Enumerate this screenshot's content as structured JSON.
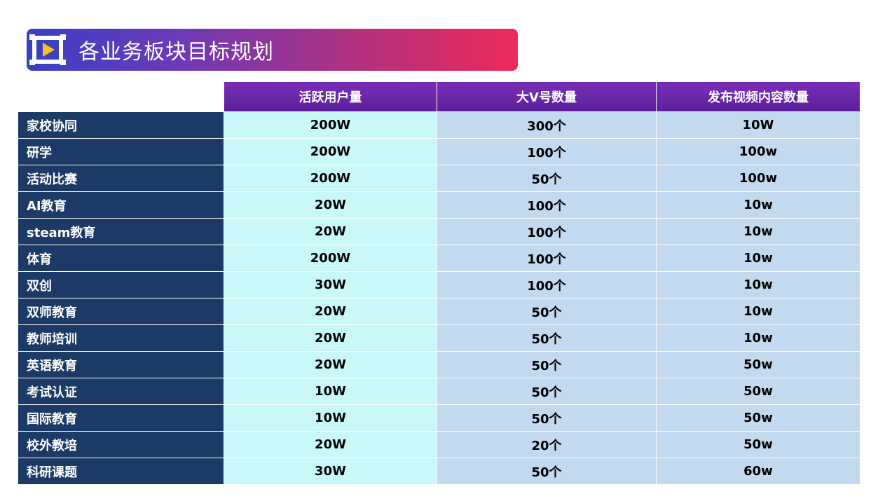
{
  "title": "各业务板块目标规划",
  "colors": {
    "header": "#6a28a8",
    "rowlabel": "#1b3a66",
    "col1": "#c9f8f8",
    "col2": "#c2d9f0"
  },
  "table": {
    "headers": [
      "活跃用户量",
      "大V号数量",
      "发布视频内容数量"
    ],
    "rows": [
      {
        "label": "家校协同",
        "c1": "200W",
        "c2": "300个",
        "c3": "10W"
      },
      {
        "label": "研学",
        "c1": "200W",
        "c2": "100个",
        "c3": "100w"
      },
      {
        "label": "活动比赛",
        "c1": "200W",
        "c2": "50个",
        "c3": "100w"
      },
      {
        "label": "AI教育",
        "c1": "20W",
        "c2": "100个",
        "c3": "10w"
      },
      {
        "label": "steam教育",
        "c1": "20W",
        "c2": "100个",
        "c3": "10w"
      },
      {
        "label": "体育",
        "c1": "200W",
        "c2": "100个",
        "c3": "10w"
      },
      {
        "label": "双创",
        "c1": "30W",
        "c2": "100个",
        "c3": "10w"
      },
      {
        "label": "双师教育",
        "c1": "20W",
        "c2": "50个",
        "c3": "10w"
      },
      {
        "label": "教师培训",
        "c1": "20W",
        "c2": "50个",
        "c3": "10w"
      },
      {
        "label": "英语教育",
        "c1": "20W",
        "c2": "50个",
        "c3": "50w"
      },
      {
        "label": "考试认证",
        "c1": "10W",
        "c2": "50个",
        "c3": "50w"
      },
      {
        "label": "国际教育",
        "c1": "10W",
        "c2": "50个",
        "c3": "50w"
      },
      {
        "label": "校外教培",
        "c1": "20W",
        "c2": "20个",
        "c3": "50w"
      },
      {
        "label": "科研课题",
        "c1": "30W",
        "c2": "50个",
        "c3": "60w"
      }
    ]
  }
}
